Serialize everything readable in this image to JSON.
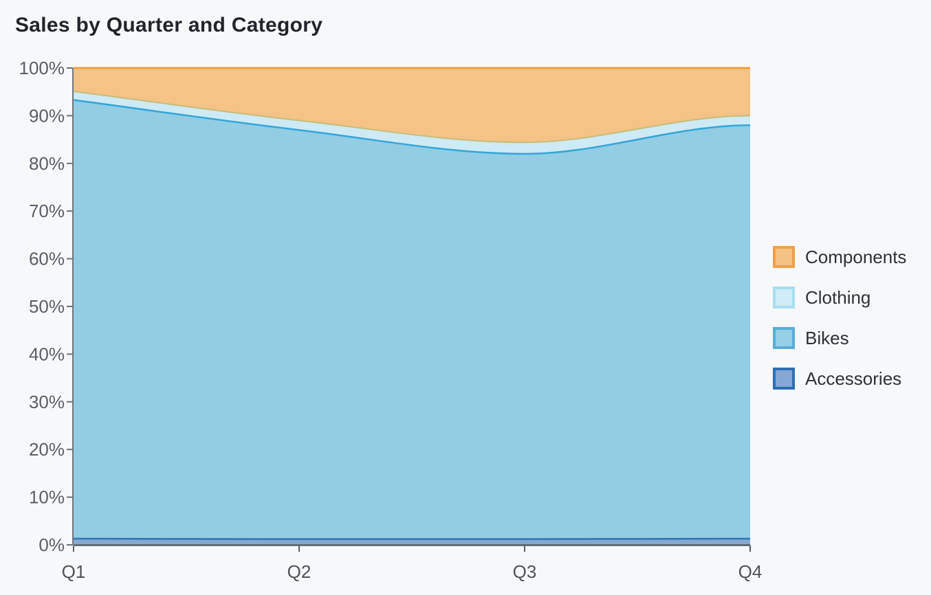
{
  "chart_data": {
    "type": "area",
    "variant": "stacked-100-percent",
    "title": "Sales by Quarter and Category",
    "categories": [
      "Q1",
      "Q2",
      "Q3",
      "Q4"
    ],
    "xlabel": "",
    "ylabel": "",
    "ylim": [
      0,
      100
    ],
    "y_ticks": [
      0,
      10,
      20,
      30,
      40,
      50,
      60,
      70,
      80,
      90,
      100
    ],
    "y_tick_suffix": "%",
    "grid": false,
    "legend_position": "right",
    "series": [
      {
        "name": "Accessories",
        "values": [
          1.3,
          1.2,
          1.2,
          1.3
        ],
        "fill": "#85a9d1",
        "line": "#2e74b5",
        "line_width": 2.5
      },
      {
        "name": "Bikes",
        "values": [
          92.0,
          85.8,
          80.8,
          86.7
        ],
        "fill": "#92cde4",
        "line": "#33a5d8",
        "line_width": 2.5
      },
      {
        "name": "Clothing",
        "values": [
          1.8,
          2.0,
          2.4,
          2.0
        ],
        "fill": "#cdeaf5",
        "line": "#c4bd7b",
        "line_width": 2
      },
      {
        "name": "Components",
        "values": [
          4.9,
          11.0,
          15.6,
          10.0
        ],
        "fill": "#f4c385",
        "line": "#ef9e41",
        "line_width": 3
      }
    ],
    "legend": [
      {
        "label": "Components",
        "fill": "#f4c285",
        "border": "#f0a04a"
      },
      {
        "label": "Clothing",
        "fill": "#d0ecf7",
        "border": "#a7def0"
      },
      {
        "label": "Bikes",
        "fill": "#96cfe6",
        "border": "#57aed6"
      },
      {
        "label": "Accessories",
        "fill": "#84a8d3",
        "border": "#2d6fb3"
      }
    ],
    "axis_colors": {
      "x_axis_line": "#555c63",
      "y_axis_line": "#71777e",
      "tick": "#6d737a",
      "x_label_text": "#4d5358",
      "y_label_text": "#585f66"
    }
  }
}
